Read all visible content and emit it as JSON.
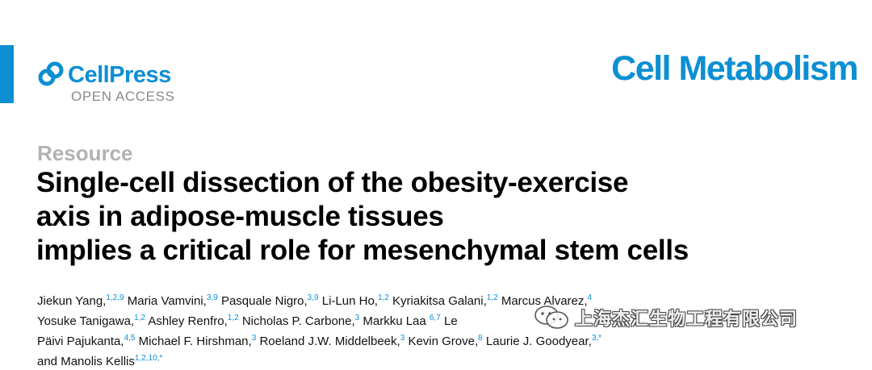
{
  "colors": {
    "accent": "#0c8fd3",
    "muted": "#b2b2b2"
  },
  "publisher": {
    "name": "CellPress",
    "access": "OPEN ACCESS",
    "icon": "cellpress-logo-icon"
  },
  "journal": {
    "name": "Cell Metabolism"
  },
  "article": {
    "type": "Resource",
    "title_lines": [
      "Single-cell dissection of the obesity-exercise",
      "axis in adipose-muscle tissues",
      "implies a critical role for mesenchymal stem cells"
    ]
  },
  "author_lines": [
    [
      {
        "name": "Jiekun Yang,",
        "aff": "1,2,9"
      },
      {
        "name": "Maria Vamvini,",
        "aff": "3,9"
      },
      {
        "name": "Pasquale Nigro,",
        "aff": "3,9"
      },
      {
        "name": "Li-Lun Ho,",
        "aff": "1,2"
      },
      {
        "name": "Kyriakitsa Galani,",
        "aff": "1,2"
      },
      {
        "name": "Marcus Alvarez,",
        "aff": "4"
      }
    ],
    [
      {
        "name": "Yosuke Tanigawa,",
        "aff": "1,2"
      },
      {
        "name": "Ashley Renfro,",
        "aff": "1,2"
      },
      {
        "name": "Nicholas P. Carbone,",
        "aff": "3"
      },
      {
        "name": "Markku Laa",
        "aff": ""
      },
      {
        "name": "",
        "aff": "6,7"
      },
      {
        "name": "Le",
        "aff": ""
      }
    ],
    [
      {
        "name": "Päivi Pajukanta,",
        "aff": "4,5"
      },
      {
        "name": "Michael F. Hirshman,",
        "aff": "3"
      },
      {
        "name": "Roeland J.W. Middelbeek,",
        "aff": "3"
      },
      {
        "name": "Kevin Grove,",
        "aff": "8"
      },
      {
        "name": "Laurie J. Goodyear,",
        "aff": "3,*"
      }
    ],
    [
      {
        "name": "and Manolis Kellis",
        "aff": "1,2,10,*"
      }
    ]
  ],
  "watermark": {
    "text": "上海杰汇生物工程有限公司",
    "icon": "wechat-icon"
  }
}
